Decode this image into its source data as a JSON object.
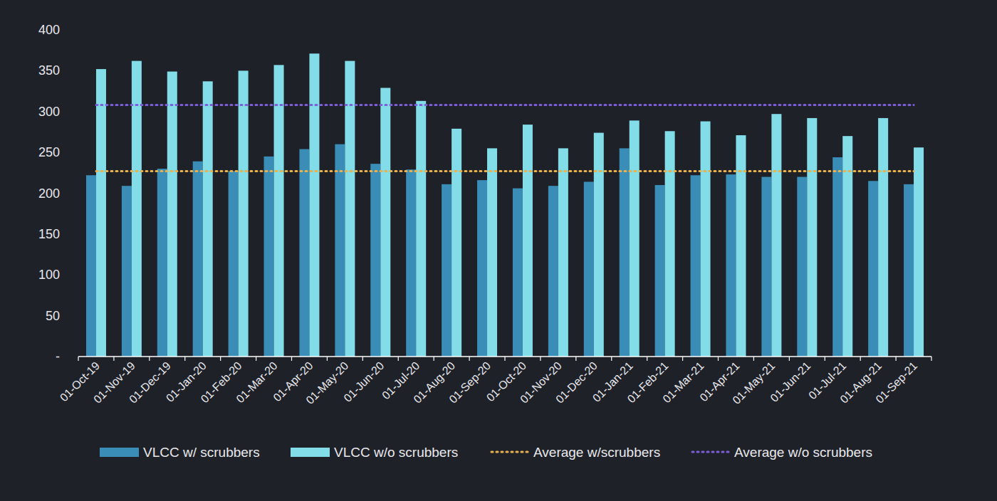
{
  "chart_data": {
    "type": "bar",
    "categories": [
      "01-Oct-19",
      "01-Nov-19",
      "01-Dec-19",
      "01-Jan-20",
      "01-Feb-20",
      "01-Mar-20",
      "01-Apr-20",
      "01-May-20",
      "01-Jun-20",
      "01-Jul-20",
      "01-Aug-20",
      "01-Sep-20",
      "01-Oct-20",
      "01-Nov-20",
      "01-Dec-20",
      "01-Jan-21",
      "01-Feb-21",
      "01-Mar-21",
      "01-Apr-21",
      "01-May-21",
      "01-Jun-21",
      "01-Jul-21",
      "01-Aug-21",
      "01-Sep-21"
    ],
    "series": [
      {
        "name": "VLCC w/ scrubbers",
        "color": "#3a8db6",
        "type": "bar",
        "values": [
          222,
          209,
          230,
          239,
          227,
          245,
          254,
          260,
          236,
          229,
          211,
          216,
          206,
          209,
          214,
          255,
          210,
          222,
          223,
          220,
          220,
          244,
          215,
          211
        ]
      },
      {
        "name": "VLCC w/o scrubbers",
        "color": "#82dde9",
        "type": "bar",
        "values": [
          352,
          362,
          349,
          337,
          350,
          357,
          371,
          362,
          329,
          313,
          279,
          255,
          284,
          255,
          274,
          289,
          276,
          288,
          271,
          297,
          292,
          270,
          292,
          256
        ]
      },
      {
        "name": "Average w/scrubbers",
        "color": "#e8b24e",
        "type": "line",
        "line_style": "dotted",
        "values": [
          227,
          227,
          227,
          227,
          227,
          227,
          227,
          227,
          227,
          227,
          227,
          227,
          227,
          227,
          227,
          227,
          227,
          227,
          227,
          227,
          227,
          227,
          227,
          227
        ]
      },
      {
        "name": "Average w/o scrubbers",
        "color": "#7c5fd8",
        "type": "line",
        "line_style": "dotted",
        "values": [
          308,
          308,
          308,
          308,
          308,
          308,
          308,
          308,
          308,
          308,
          308,
          308,
          308,
          308,
          308,
          308,
          308,
          308,
          308,
          308,
          308,
          308,
          308,
          308
        ]
      }
    ],
    "ylim": [
      0,
      400
    ],
    "yticks": [
      {
        "value": 0,
        "label": "-"
      },
      50,
      100,
      150,
      200,
      250,
      300,
      350,
      400
    ],
    "grid": false,
    "legend": "bottom"
  }
}
